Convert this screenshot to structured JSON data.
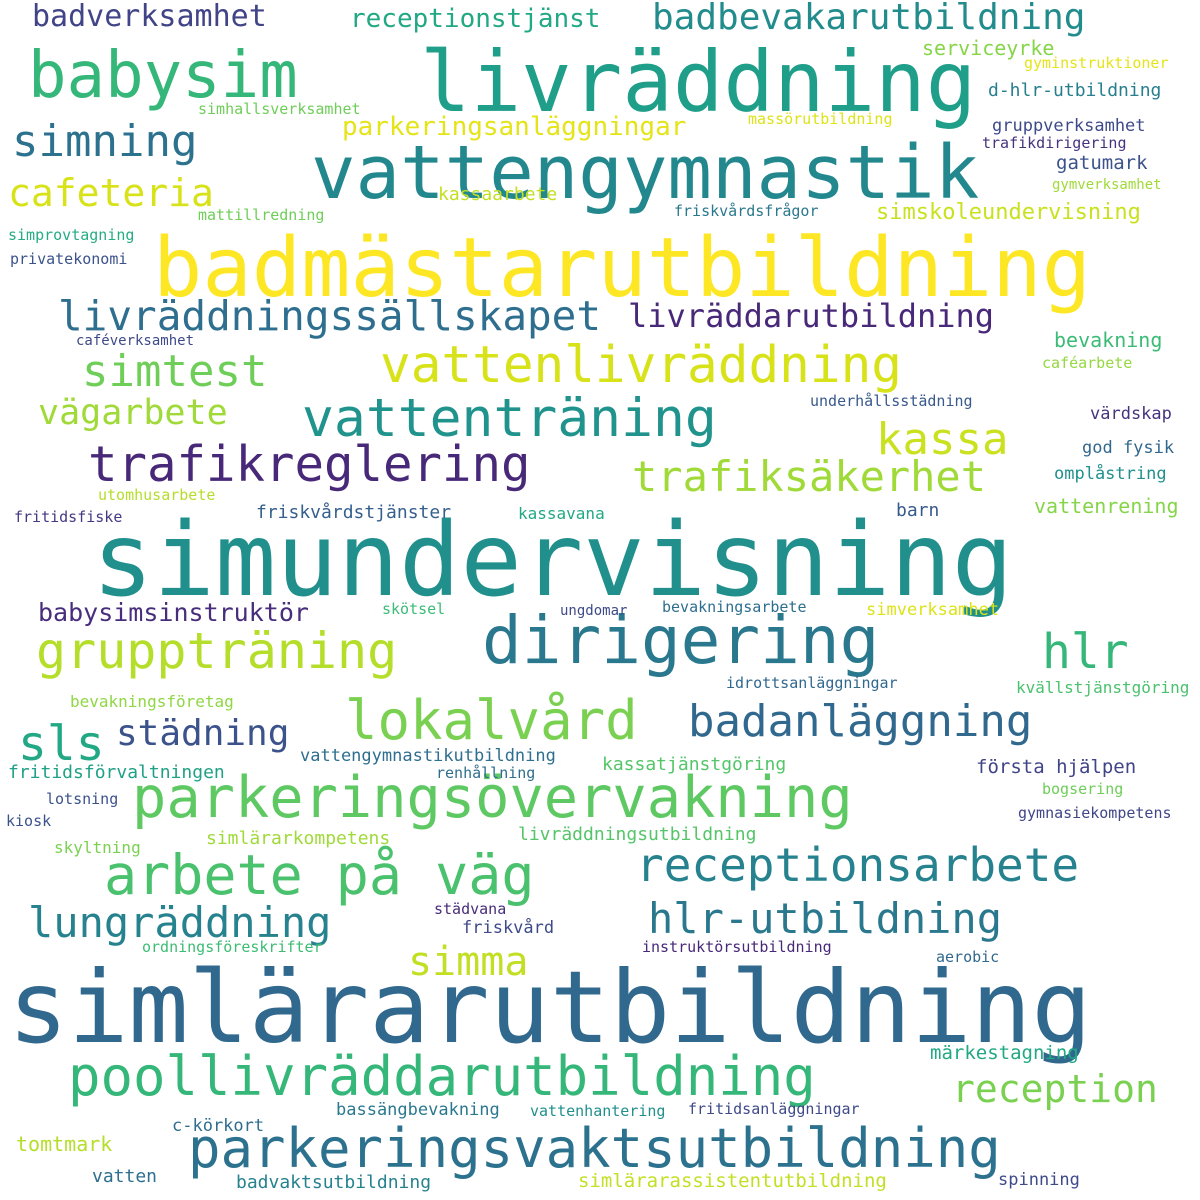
{
  "words": [
    {
      "text": "simundervisning",
      "color": "#21908d"
    },
    {
      "text": "simlärarutbildning",
      "color": "#31688e"
    },
    {
      "text": "badmästarutbildning",
      "color": "#fde725"
    },
    {
      "text": "livräddning",
      "color": "#1f9e89"
    },
    {
      "text": "vattengymnastik",
      "color": "#23888e"
    },
    {
      "text": "babysim",
      "color": "#35b779"
    },
    {
      "text": "dirigering",
      "color": "#2a788e"
    },
    {
      "text": "parkeringsövervakning",
      "color": "#5ec962"
    },
    {
      "text": "poollivräddarutbildning",
      "color": "#35b779"
    },
    {
      "text": "parkeringsvaktsutbildning",
      "color": "#2c728e"
    },
    {
      "text": "vattenlivräddning",
      "color": "#d8e219"
    },
    {
      "text": "vattenträning",
      "color": "#20938c"
    },
    {
      "text": "trafikreglering",
      "color": "#482878"
    },
    {
      "text": "gruppträning",
      "color": "#b5de2b"
    },
    {
      "text": "lokalvård",
      "color": "#7ad151"
    },
    {
      "text": "arbete på väg",
      "color": "#4ac16d"
    },
    {
      "text": "receptionsarbete",
      "color": "#26828e"
    },
    {
      "text": "livräddningssällskapet",
      "color": "#2e6e8e"
    },
    {
      "text": "badbevakarutbildning",
      "color": "#228c8d"
    },
    {
      "text": "simning",
      "color": "#2c728e"
    },
    {
      "text": "simtest",
      "color": "#6ece58"
    },
    {
      "text": "badanläggning",
      "color": "#31688e"
    },
    {
      "text": "hlr-utbildning",
      "color": "#2a788e"
    },
    {
      "text": "lungräddning",
      "color": "#26828e"
    },
    {
      "text": "trafiksäkerhet",
      "color": "#a0da39"
    },
    {
      "text": "livräddarutbildning",
      "color": "#482878"
    },
    {
      "text": "kassa",
      "color": "#cae11f"
    },
    {
      "text": "hlr",
      "color": "#35b779"
    },
    {
      "text": "sls",
      "color": "#22a884"
    },
    {
      "text": "reception",
      "color": "#7ad151"
    },
    {
      "text": "simma",
      "color": "#c2df23"
    },
    {
      "text": "cafeteria",
      "color": "#d8e219"
    },
    {
      "text": "vägarbete",
      "color": "#a0da39"
    },
    {
      "text": "städning",
      "color": "#3b528b"
    },
    {
      "text": "badverksamhet",
      "color": "#414487"
    },
    {
      "text": "receptionstjänst",
      "color": "#22a884"
    },
    {
      "text": "parkeringsanläggningar",
      "color": "#e5e419"
    },
    {
      "text": "babysimsinstruktör",
      "color": "#472d7b"
    },
    {
      "text": "simskoleundervisning",
      "color": "#cae11f"
    },
    {
      "text": "serviceyrke",
      "color": "#86d549"
    },
    {
      "text": "gyminstruktioner",
      "color": "#e5e419"
    },
    {
      "text": "d-hlr-utbildning",
      "color": "#277f8e"
    },
    {
      "text": "gruppverksamhet",
      "color": "#3e4a89"
    },
    {
      "text": "trafikdirigering",
      "color": "#46337e"
    },
    {
      "text": "gatumark",
      "color": "#3b528b"
    },
    {
      "text": "gymverksamhet",
      "color": "#a0da39"
    },
    {
      "text": "simhallsverksamhet",
      "color": "#6ece58"
    },
    {
      "text": "massörutbildning",
      "color": "#dde318"
    },
    {
      "text": "kassaarbete",
      "color": "#c2df23"
    },
    {
      "text": "friskvårdsfrågor",
      "color": "#2a788e"
    },
    {
      "text": "mattillredning",
      "color": "#6ece58"
    },
    {
      "text": "simprovtagning",
      "color": "#25ac82"
    },
    {
      "text": "privatekonomi",
      "color": "#3b528b"
    },
    {
      "text": "caféverksamhet",
      "color": "#3e4a89"
    },
    {
      "text": "bevakning",
      "color": "#3bbb75"
    },
    {
      "text": "caféarbete",
      "color": "#95d840"
    },
    {
      "text": "underhållsstädning",
      "color": "#38598c"
    },
    {
      "text": "värdskap",
      "color": "#46337e"
    },
    {
      "text": "god fysik",
      "color": "#31688e"
    },
    {
      "text": "omplåstring",
      "color": "#21908d"
    },
    {
      "text": "utomhusarbete",
      "color": "#b5de2b"
    },
    {
      "text": "fritidsfiske",
      "color": "#443983"
    },
    {
      "text": "friskvårdstjänster",
      "color": "#355f8d"
    },
    {
      "text": "kassavana",
      "color": "#22a884"
    },
    {
      "text": "barn",
      "color": "#38598c"
    },
    {
      "text": "vattenrening",
      "color": "#86d549"
    },
    {
      "text": "skötsel",
      "color": "#3bbb75"
    },
    {
      "text": "ungdomar",
      "color": "#3e4a89"
    },
    {
      "text": "bevakningsarbete",
      "color": "#2e6e8e"
    },
    {
      "text": "simverksamhet",
      "color": "#dde318"
    },
    {
      "text": "bevakningsföretag",
      "color": "#8fd744"
    },
    {
      "text": "idrottsanläggningar",
      "color": "#31688e"
    },
    {
      "text": "kvällstjänstgöring",
      "color": "#4ac16d"
    },
    {
      "text": "vattengymnastikutbildning",
      "color": "#2e6e8e"
    },
    {
      "text": "fritidsförvaltningen",
      "color": "#1fa187"
    },
    {
      "text": "renhållning",
      "color": "#2e6e8e"
    },
    {
      "text": "kassatjänstgöring",
      "color": "#54c568"
    },
    {
      "text": "första hjälpen",
      "color": "#414487"
    },
    {
      "text": "lotsning",
      "color": "#3b528b"
    },
    {
      "text": "bogsering",
      "color": "#6ece58"
    },
    {
      "text": "kiosk",
      "color": "#3b528b"
    },
    {
      "text": "gymnasiekompetens",
      "color": "#404688"
    },
    {
      "text": "simlärarkompetens",
      "color": "#a0da39"
    },
    {
      "text": "livräddningsutbildning",
      "color": "#54c568"
    },
    {
      "text": "skyltning",
      "color": "#7ad151"
    },
    {
      "text": "städvana",
      "color": "#472d7b"
    },
    {
      "text": "friskvård",
      "color": "#3e4a89"
    },
    {
      "text": "ordningsföreskrifter",
      "color": "#3dbc74"
    },
    {
      "text": "instruktörsutbildning",
      "color": "#482878"
    },
    {
      "text": "aerobic",
      "color": "#31688e"
    },
    {
      "text": "märkestagning",
      "color": "#22a884"
    },
    {
      "text": "bassängbevakning",
      "color": "#2a788e"
    },
    {
      "text": "vattenhantering",
      "color": "#21908d"
    },
    {
      "text": "fritidsanläggningar",
      "color": "#3e4a89"
    },
    {
      "text": "c-körkort",
      "color": "#2e6e8e"
    },
    {
      "text": "tomtmark",
      "color": "#b5de2b"
    },
    {
      "text": "vatten",
      "color": "#2e6e8e"
    },
    {
      "text": "badvaktsutbildning",
      "color": "#26828e"
    },
    {
      "text": "simlärarassistentutbildning",
      "color": "#c2df23"
    },
    {
      "text": "spinning",
      "color": "#3e4a89"
    }
  ]
}
